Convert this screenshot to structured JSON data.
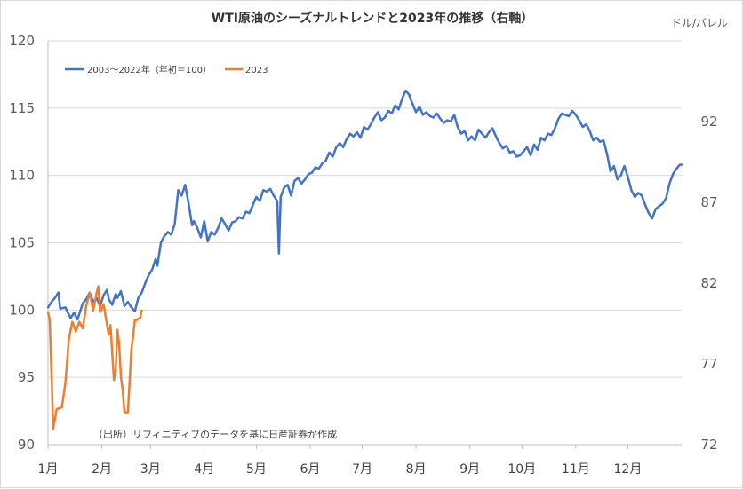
{
  "chart_data": {
    "type": "line",
    "title": "WTI原油のシーズナルトレンドと2023年の推移（右軸）",
    "left_axis": {
      "ylim": [
        90,
        120
      ],
      "ticks": [
        90,
        95,
        100,
        105,
        110,
        115,
        120
      ]
    },
    "right_axis": {
      "unit": "ドル/バレル",
      "ylim": [
        72,
        97
      ],
      "ticks": [
        72,
        77,
        82,
        87,
        92
      ]
    },
    "x_axis": {
      "categories": [
        "1月",
        "2月",
        "3月",
        "4月",
        "5月",
        "6月",
        "7月",
        "8月",
        "9月",
        "10月",
        "11月",
        "12月"
      ],
      "day_range": [
        0,
        365
      ]
    },
    "grid": true,
    "legend_position": "top-left",
    "note": "（出所）リフィニティブのデータを基に日産証券が作成",
    "series": [
      {
        "name": "2003～2022年（年初＝100）",
        "color": "#4472C4",
        "axis": "left",
        "points": [
          [
            0,
            100.2
          ],
          [
            2,
            100.6
          ],
          [
            4,
            100.9
          ],
          [
            6,
            101.3
          ],
          [
            7,
            100.1
          ],
          [
            10,
            100.2
          ],
          [
            13,
            99.4
          ],
          [
            15,
            99.8
          ],
          [
            17,
            99.3
          ],
          [
            20,
            100.5
          ],
          [
            22,
            100.8
          ],
          [
            24,
            101.3
          ],
          [
            26,
            100.6
          ],
          [
            28,
            100.9
          ],
          [
            30,
            100.3
          ],
          [
            32,
            101.1
          ],
          [
            34,
            101.5
          ],
          [
            35,
            100.8
          ],
          [
            37,
            100.4
          ],
          [
            39,
            101.2
          ],
          [
            40,
            100.9
          ],
          [
            42,
            101.4
          ],
          [
            44,
            100.3
          ],
          [
            46,
            100.6
          ],
          [
            48,
            100.2
          ],
          [
            50,
            99.9
          ],
          [
            52,
            100.9
          ],
          [
            54,
            101.3
          ],
          [
            56,
            102.0
          ],
          [
            58,
            102.6
          ],
          [
            60,
            103.0
          ],
          [
            62,
            103.8
          ],
          [
            63,
            103.3
          ],
          [
            65,
            105.0
          ],
          [
            67,
            105.5
          ],
          [
            69,
            105.8
          ],
          [
            71,
            105.6
          ],
          [
            73,
            106.4
          ],
          [
            75,
            108.9
          ],
          [
            77,
            108.5
          ],
          [
            79,
            109.3
          ],
          [
            81,
            107.9
          ],
          [
            83,
            106.3
          ],
          [
            84,
            106.6
          ],
          [
            86,
            106.1
          ],
          [
            88,
            105.4
          ],
          [
            90,
            106.6
          ],
          [
            92,
            105.1
          ],
          [
            94,
            105.8
          ],
          [
            96,
            105.6
          ],
          [
            98,
            106.1
          ],
          [
            100,
            106.8
          ],
          [
            102,
            106.4
          ],
          [
            104,
            105.9
          ],
          [
            106,
            106.5
          ],
          [
            108,
            106.6
          ],
          [
            110,
            106.9
          ],
          [
            112,
            106.8
          ],
          [
            114,
            107.3
          ],
          [
            116,
            107.2
          ],
          [
            118,
            107.8
          ],
          [
            120,
            108.4
          ],
          [
            122,
            108.1
          ],
          [
            124,
            108.9
          ],
          [
            126,
            108.8
          ],
          [
            128,
            109.0
          ],
          [
            130,
            108.5
          ],
          [
            132,
            108.1
          ],
          [
            133,
            104.2
          ],
          [
            134,
            108.4
          ],
          [
            136,
            109.1
          ],
          [
            138,
            109.3
          ],
          [
            140,
            108.5
          ],
          [
            142,
            109.6
          ],
          [
            144,
            109.8
          ],
          [
            146,
            109.4
          ],
          [
            148,
            109.7
          ],
          [
            150,
            110.1
          ],
          [
            152,
            110.2
          ],
          [
            154,
            110.6
          ],
          [
            156,
            110.5
          ],
          [
            158,
            110.9
          ],
          [
            160,
            111.1
          ],
          [
            162,
            111.7
          ],
          [
            164,
            111.4
          ],
          [
            166,
            112.1
          ],
          [
            168,
            112.4
          ],
          [
            170,
            112.1
          ],
          [
            172,
            112.7
          ],
          [
            174,
            113.1
          ],
          [
            176,
            112.9
          ],
          [
            178,
            113.2
          ],
          [
            180,
            112.8
          ],
          [
            182,
            113.6
          ],
          [
            184,
            113.4
          ],
          [
            186,
            113.8
          ],
          [
            188,
            114.3
          ],
          [
            190,
            114.7
          ],
          [
            192,
            114.1
          ],
          [
            194,
            114.3
          ],
          [
            196,
            114.8
          ],
          [
            198,
            114.6
          ],
          [
            200,
            115.2
          ],
          [
            202,
            114.9
          ],
          [
            204,
            115.7
          ],
          [
            206,
            116.3
          ],
          [
            208,
            116.0
          ],
          [
            210,
            115.3
          ],
          [
            212,
            114.7
          ],
          [
            214,
            115.1
          ],
          [
            216,
            114.5
          ],
          [
            218,
            114.7
          ],
          [
            220,
            114.4
          ],
          [
            222,
            114.3
          ],
          [
            224,
            114.6
          ],
          [
            226,
            114.2
          ],
          [
            228,
            113.9
          ],
          [
            230,
            114.1
          ],
          [
            232,
            114.0
          ],
          [
            234,
            114.5
          ],
          [
            236,
            113.6
          ],
          [
            238,
            113.1
          ],
          [
            240,
            113.3
          ],
          [
            242,
            112.6
          ],
          [
            244,
            112.9
          ],
          [
            246,
            112.6
          ],
          [
            248,
            113.4
          ],
          [
            250,
            113.1
          ],
          [
            252,
            112.8
          ],
          [
            254,
            113.2
          ],
          [
            256,
            113.5
          ],
          [
            258,
            112.9
          ],
          [
            260,
            112.4
          ],
          [
            262,
            112.0
          ],
          [
            264,
            112.2
          ],
          [
            266,
            111.7
          ],
          [
            268,
            111.8
          ],
          [
            270,
            111.4
          ],
          [
            272,
            111.5
          ],
          [
            274,
            111.8
          ],
          [
            276,
            112.1
          ],
          [
            278,
            111.5
          ],
          [
            280,
            112.3
          ],
          [
            282,
            111.9
          ],
          [
            284,
            112.8
          ],
          [
            286,
            112.6
          ],
          [
            288,
            113.1
          ],
          [
            290,
            113.0
          ],
          [
            292,
            113.5
          ],
          [
            294,
            114.2
          ],
          [
            296,
            114.6
          ],
          [
            298,
            114.5
          ],
          [
            300,
            114.4
          ],
          [
            302,
            114.8
          ],
          [
            304,
            114.5
          ],
          [
            306,
            114.1
          ],
          [
            308,
            113.6
          ],
          [
            310,
            113.8
          ],
          [
            312,
            113.3
          ],
          [
            314,
            112.6
          ],
          [
            316,
            112.8
          ],
          [
            318,
            112.5
          ],
          [
            320,
            112.6
          ],
          [
            322,
            111.6
          ],
          [
            324,
            110.3
          ],
          [
            326,
            110.7
          ],
          [
            328,
            109.7
          ],
          [
            330,
            110.0
          ],
          [
            332,
            110.7
          ],
          [
            334,
            109.9
          ],
          [
            336,
            108.9
          ],
          [
            338,
            108.4
          ],
          [
            340,
            108.7
          ],
          [
            342,
            108.5
          ],
          [
            344,
            107.8
          ],
          [
            346,
            107.2
          ],
          [
            348,
            106.8
          ],
          [
            350,
            107.5
          ],
          [
            352,
            107.7
          ],
          [
            354,
            107.9
          ],
          [
            356,
            108.3
          ],
          [
            358,
            109.4
          ],
          [
            360,
            110.1
          ],
          [
            362,
            110.5
          ],
          [
            364,
            110.8
          ],
          [
            365,
            110.8
          ]
        ]
      },
      {
        "name": "2023",
        "color": "#ED7D31",
        "axis": "right",
        "points": [
          [
            0,
            80.2
          ],
          [
            1,
            79.7
          ],
          [
            3,
            73.0
          ],
          [
            5,
            74.2
          ],
          [
            8,
            74.3
          ],
          [
            10,
            75.8
          ],
          [
            12,
            78.5
          ],
          [
            14,
            79.6
          ],
          [
            16,
            79.0
          ],
          [
            18,
            79.6
          ],
          [
            20,
            79.2
          ],
          [
            22,
            80.6
          ],
          [
            24,
            81.4
          ],
          [
            26,
            80.3
          ],
          [
            28,
            81.4
          ],
          [
            29,
            81.8
          ],
          [
            30,
            80.2
          ],
          [
            32,
            80.7
          ],
          [
            34,
            79.4
          ],
          [
            35,
            78.8
          ],
          [
            36,
            79.4
          ],
          [
            38,
            76.0
          ],
          [
            39,
            76.6
          ],
          [
            40,
            79.1
          ],
          [
            41,
            78.2
          ],
          [
            42,
            76.2
          ],
          [
            43,
            75.4
          ],
          [
            44,
            74.0
          ],
          [
            46,
            74.0
          ],
          [
            48,
            77.9
          ],
          [
            49,
            78.7
          ],
          [
            50,
            79.7
          ],
          [
            51,
            79.7
          ],
          [
            52,
            79.8
          ],
          [
            53,
            79.8
          ],
          [
            54,
            80.3
          ]
        ]
      }
    ]
  }
}
